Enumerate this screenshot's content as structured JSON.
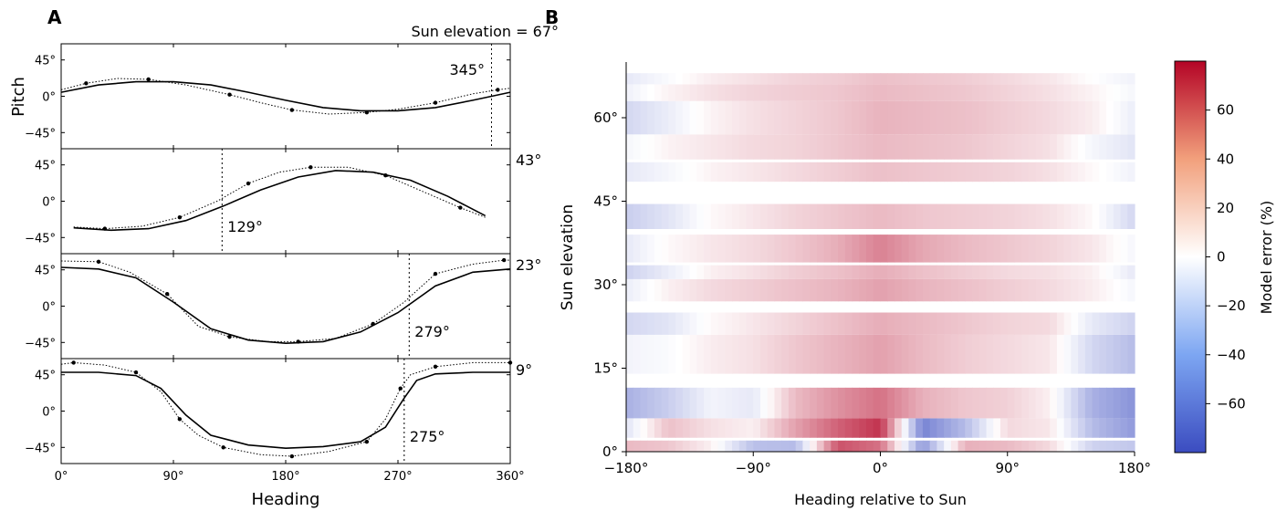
{
  "panels": {
    "a_letter": "A",
    "b_letter": "B"
  },
  "chart_data": [
    {
      "type": "line",
      "panel": "A",
      "xlabel": "Heading",
      "ylabel": "Pitch",
      "xlim": [
        0,
        360
      ],
      "ylim": [
        -65,
        65
      ],
      "xticks": [
        "0°",
        "90°",
        "180°",
        "270°",
        "360°"
      ],
      "xtick_values": [
        0,
        90,
        180,
        270,
        360
      ],
      "yticks": [
        "45°",
        "0°",
        "−45°"
      ],
      "ytick_values": [
        45,
        0,
        -45
      ],
      "subplots": [
        {
          "elevation_label": "Sun elevation = 67°",
          "marker_label": "345°",
          "marker_heading": 345,
          "model": {
            "x": [
              0,
              30,
              60,
              90,
              120,
              150,
              180,
              210,
              240,
              270,
              300,
              330,
              360
            ],
            "y": [
              5,
              14,
              18,
              18,
              14,
              5,
              -5,
              -14,
              -18,
              -18,
              -14,
              -5,
              5
            ]
          },
          "observed": {
            "x": [
              0,
              20,
              45,
              70,
              100,
              135,
              160,
              185,
              215,
              245,
              270,
              300,
              330,
              350,
              360
            ],
            "y": [
              8,
              16,
              22,
              21,
              14,
              2,
              -8,
              -17,
              -22,
              -20,
              -16,
              -8,
              3,
              8,
              10
            ]
          }
        },
        {
          "elevation_label": "43°",
          "marker_label": "129°",
          "marker_heading": 129,
          "model": {
            "x": [
              10,
              40,
              70,
              100,
              130,
              160,
              190,
              220,
              250,
              280,
              310,
              340
            ],
            "y": [
              -33,
              -36,
              -34,
              -24,
              -6,
              14,
              30,
              38,
              36,
              26,
              6,
              -18
            ]
          },
          "observed": {
            "x": [
              10,
              35,
              65,
              95,
              125,
              150,
              175,
              200,
              230,
              260,
              290,
              320,
              340
            ],
            "y": [
              -32,
              -34,
              -31,
              -20,
              0,
              22,
              36,
              42,
              42,
              32,
              12,
              -8,
              -20
            ]
          }
        },
        {
          "elevation_label": "23°",
          "marker_label": "279°",
          "marker_heading": 279,
          "model": {
            "x": [
              0,
              30,
              60,
              90,
              120,
              150,
              180,
              210,
              240,
              270,
              300,
              330,
              360
            ],
            "y": [
              48,
              46,
              35,
              5,
              -28,
              -42,
              -46,
              -44,
              -32,
              -8,
              25,
              42,
              46
            ]
          },
          "observed": {
            "x": [
              0,
              30,
              55,
              85,
              110,
              135,
              165,
              190,
              220,
              250,
              275,
              300,
              330,
              355,
              360
            ],
            "y": [
              56,
              55,
              42,
              15,
              -25,
              -38,
              -44,
              -44,
              -40,
              -22,
              5,
              40,
              52,
              57,
              57
            ]
          }
        },
        {
          "elevation_label": "9°",
          "marker_label": "275°",
          "marker_heading": 275,
          "model": {
            "x": [
              0,
              30,
              60,
              80,
              100,
              120,
              150,
              180,
              210,
              240,
              260,
              275,
              285,
              300,
              330,
              360
            ],
            "y": [
              48,
              48,
              44,
              28,
              -5,
              -30,
              -42,
              -46,
              -44,
              -38,
              -20,
              16,
              38,
              46,
              48,
              48
            ]
          },
          "observed": {
            "x": [
              0,
              10,
              35,
              60,
              80,
              95,
              110,
              130,
              160,
              185,
              215,
              245,
              260,
              272,
              280,
              300,
              330,
              360
            ],
            "y": [
              58,
              60,
              57,
              48,
              24,
              -10,
              -30,
              -45,
              -54,
              -56,
              -50,
              -38,
              -10,
              28,
              45,
              55,
              60,
              60
            ]
          }
        }
      ]
    },
    {
      "type": "heatmap",
      "panel": "B",
      "xlabel": "Heading relative to Sun",
      "ylabel": "Sun elevation",
      "colorbar_label": "Model error (%)",
      "xlim": [
        -180,
        180
      ],
      "ylim": [
        0,
        70
      ],
      "xticks": [
        "−180°",
        "−90°",
        "0°",
        "90°",
        "180°"
      ],
      "xtick_values": [
        -180,
        -90,
        0,
        90,
        180
      ],
      "yticks": [
        "0°",
        "15°",
        "30°",
        "45°",
        "60°"
      ],
      "ytick_values": [
        0,
        15,
        30,
        45,
        60
      ],
      "colorbar_ticks": [
        "60",
        "40",
        "20",
        "0",
        "−20",
        "−40",
        "−60"
      ],
      "colorbar_tick_values": [
        60,
        40,
        20,
        0,
        -20,
        -40,
        -60
      ],
      "color_range": [
        -80,
        80
      ],
      "colormap": {
        "low": "#3b4cc0",
        "mid": "#ffffff",
        "high": "#b40426"
      },
      "x": [
        -180,
        -150,
        -120,
        -90,
        -60,
        -30,
        0,
        30,
        60,
        90,
        120,
        150,
        180
      ],
      "rows": [
        {
          "y0": 0,
          "y1": 2,
          "values": [
            22,
            18,
            5,
            -28,
            -30,
            55,
            45,
            -45,
            25,
            22,
            12,
            -20,
            -25
          ]
        },
        {
          "y0": 2.5,
          "y1": 6,
          "values": [
            -12,
            20,
            10,
            5,
            30,
            50,
            65,
            -55,
            -30,
            12,
            8,
            -30,
            -45
          ]
        },
        {
          "y0": 6,
          "y1": 11.5,
          "values": [
            -35,
            -22,
            -5,
            -10,
            22,
            35,
            45,
            25,
            18,
            15,
            5,
            -35,
            -48
          ]
        },
        {
          "y0": 14,
          "y1": 21,
          "values": [
            -5,
            -2,
            6,
            10,
            18,
            24,
            30,
            22,
            16,
            12,
            8,
            -18,
            -30
          ]
        },
        {
          "y0": 21,
          "y1": 25,
          "values": [
            -18,
            -12,
            2,
            8,
            14,
            20,
            26,
            22,
            18,
            14,
            12,
            -10,
            -20
          ]
        },
        {
          "y0": 27,
          "y1": 31,
          "values": [
            -8,
            5,
            12,
            16,
            20,
            24,
            30,
            24,
            20,
            16,
            12,
            6,
            -4
          ]
        },
        {
          "y0": 31,
          "y1": 33.5,
          "values": [
            -20,
            -8,
            5,
            10,
            16,
            20,
            26,
            20,
            16,
            12,
            10,
            5,
            -10
          ]
        },
        {
          "y0": 34,
          "y1": 39,
          "values": [
            -10,
            2,
            8,
            12,
            18,
            26,
            40,
            28,
            22,
            18,
            14,
            8,
            -4
          ]
        },
        {
          "y0": 40,
          "y1": 44.5,
          "values": [
            -22,
            -12,
            2,
            8,
            14,
            18,
            22,
            18,
            16,
            14,
            10,
            2,
            -18
          ]
        },
        {
          "y0": 48.5,
          "y1": 52,
          "values": [
            -10,
            -4,
            4,
            8,
            12,
            16,
            20,
            18,
            16,
            14,
            10,
            2,
            -6
          ]
        },
        {
          "y0": 52.5,
          "y1": 57,
          "values": [
            -4,
            4,
            8,
            12,
            14,
            18,
            22,
            20,
            18,
            14,
            10,
            -4,
            -12
          ]
        },
        {
          "y0": 57,
          "y1": 63,
          "values": [
            -18,
            -8,
            4,
            10,
            14,
            18,
            24,
            22,
            20,
            16,
            12,
            6,
            -8
          ]
        },
        {
          "y0": 63,
          "y1": 66,
          "values": [
            -6,
            4,
            10,
            14,
            16,
            18,
            22,
            20,
            18,
            14,
            10,
            4,
            -4
          ]
        },
        {
          "y0": 66,
          "y1": 68,
          "values": [
            -10,
            -2,
            6,
            10,
            14,
            16,
            20,
            18,
            16,
            12,
            8,
            0,
            -6
          ]
        }
      ]
    }
  ]
}
